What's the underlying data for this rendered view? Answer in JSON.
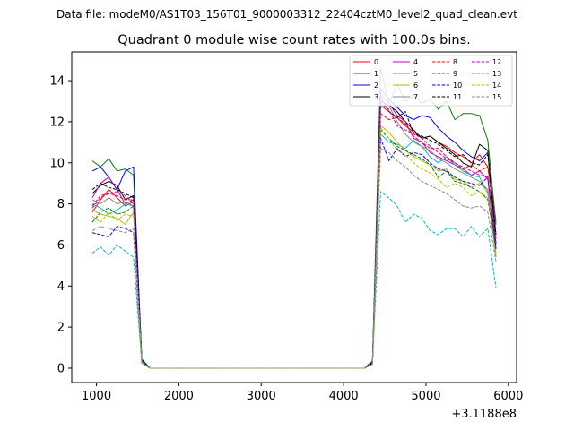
{
  "chart_data": {
    "type": "line",
    "suptitle": "Data file: modeM0/AS1T03_156T01_9000003312_22404cztM0_level2_quad_clean.evt",
    "title": "Quadrant 0 module wise count rates with 100.0s bins.",
    "xlabel": "",
    "ylabel": "",
    "x_offset_label": "+3.1188e8",
    "xlim": [
      700,
      6100
    ],
    "ylim": [
      -0.7,
      15.4
    ],
    "x_ticks": [
      1000,
      2000,
      3000,
      4000,
      5000,
      6000
    ],
    "x_tick_labels": [
      "1000",
      "2000",
      "3000",
      "4000",
      "5000",
      "6000"
    ],
    "y_ticks": [
      0,
      2,
      4,
      6,
      8,
      10,
      12,
      14
    ],
    "y_tick_labels": [
      "0",
      "2",
      "4",
      "6",
      "8",
      "10",
      "12",
      "14"
    ],
    "legend_position": "upper right",
    "x": [
      950,
      1050,
      1150,
      1250,
      1350,
      1450,
      1550,
      1650,
      1750,
      1850,
      1950,
      2050,
      2150,
      2250,
      2350,
      2450,
      2550,
      2650,
      2750,
      2850,
      2950,
      3050,
      3150,
      3250,
      3350,
      3450,
      3550,
      3650,
      3750,
      3850,
      3950,
      4050,
      4150,
      4250,
      4350,
      4450,
      4550,
      4650,
      4750,
      4850,
      4950,
      5050,
      5150,
      5250,
      5350,
      5450,
      5550,
      5650,
      5750,
      5850
    ],
    "series": [
      {
        "name": "0",
        "color": "#ff0000",
        "dash": "solid",
        "pre": [
          7.6,
          8.2,
          8.7,
          8.3,
          7.9,
          8.1,
          0.3
        ],
        "post": [
          0.2,
          12.8,
          12.5,
          12.2,
          11.8,
          11.5,
          11.2,
          11.3,
          11.0,
          10.8,
          10.5,
          10.3,
          10.0,
          10.4,
          9.8,
          7.2
        ]
      },
      {
        "name": "1",
        "color": "#008000",
        "dash": "solid",
        "pre": [
          10.1,
          9.8,
          10.2,
          9.6,
          9.7,
          9.4,
          0.45
        ],
        "post": [
          0.35,
          14.6,
          12.9,
          13.8,
          13.0,
          13.3,
          12.9,
          13.1,
          12.6,
          13.0,
          12.1,
          12.4,
          12.4,
          12.3,
          11.1,
          7.0
        ]
      },
      {
        "name": "2",
        "color": "#0000ff",
        "dash": "solid",
        "pre": [
          9.6,
          9.8,
          9.3,
          8.7,
          9.6,
          9.8,
          0.4
        ],
        "post": [
          0.3,
          13.6,
          13.1,
          12.7,
          12.3,
          12.1,
          12.3,
          12.2,
          11.7,
          11.3,
          11.0,
          10.6,
          10.3,
          10.1,
          10.5,
          6.5
        ]
      },
      {
        "name": "3",
        "color": "#000000",
        "dash": "solid",
        "pre": [
          8.5,
          8.9,
          9.1,
          8.9,
          8.2,
          8.4,
          0.35
        ],
        "post": [
          0.25,
          13.0,
          12.8,
          12.5,
          12.0,
          11.6,
          11.2,
          11.3,
          11.0,
          10.7,
          10.4,
          10.0,
          9.8,
          10.9,
          10.6,
          6.0
        ]
      },
      {
        "name": "4",
        "color": "#c000c0",
        "dash": "solid",
        "pre": [
          8.3,
          9.0,
          9.3,
          8.7,
          8.0,
          8.2,
          0.3
        ],
        "post": [
          0.2,
          13.3,
          12.9,
          12.3,
          12.0,
          11.2,
          11.0,
          10.5,
          10.3,
          10.1,
          9.9,
          9.7,
          9.4,
          9.6,
          9.2,
          5.8
        ]
      },
      {
        "name": "5",
        "color": "#00bbbb",
        "dash": "solid",
        "pre": [
          8.0,
          7.8,
          7.5,
          7.7,
          8.0,
          7.9,
          0.35
        ],
        "post": [
          0.25,
          11.4,
          11.0,
          10.9,
          10.7,
          11.1,
          10.8,
          10.3,
          10.0,
          10.3,
          9.9,
          9.6,
          9.4,
          9.3,
          8.5,
          6.0
        ]
      },
      {
        "name": "6",
        "color": "#bbbb00",
        "dash": "solid",
        "pre": [
          7.7,
          7.5,
          7.4,
          7.3,
          7.0,
          7.6,
          0.3
        ],
        "post": [
          0.2,
          11.8,
          11.5,
          11.0,
          10.6,
          10.3,
          10.1,
          9.9,
          9.6,
          9.7,
          9.2,
          9.1,
          8.8,
          9.0,
          8.6,
          5.6
        ]
      },
      {
        "name": "7",
        "color": "#888888",
        "dash": "solid",
        "pre": [
          8.2,
          8.0,
          8.3,
          8.0,
          8.1,
          7.9,
          0.35
        ],
        "post": [
          0.25,
          12.7,
          12.8,
          12.0,
          11.4,
          11.0,
          10.8,
          10.6,
          10.2,
          10.0,
          9.7,
          9.5,
          9.3,
          9.1,
          8.7,
          5.4
        ]
      },
      {
        "name": "8",
        "color": "#ff0000",
        "dash": "dashed",
        "pre": [
          7.9,
          8.4,
          8.5,
          8.4,
          8.2,
          8.2,
          0.3
        ],
        "post": [
          0.2,
          12.4,
          12.1,
          12.2,
          11.9,
          11.3,
          11.0,
          10.7,
          10.7,
          10.3,
          10.0,
          9.7,
          9.9,
          9.6,
          9.8,
          6.3
        ]
      },
      {
        "name": "9",
        "color": "#008000",
        "dash": "dashed",
        "pre": [
          7.1,
          7.6,
          7.8,
          7.5,
          7.6,
          7.9,
          0.3
        ],
        "post": [
          0.2,
          11.6,
          11.2,
          10.8,
          10.6,
          10.4,
          10.2,
          9.9,
          9.3,
          9.6,
          9.1,
          9.0,
          8.8,
          8.6,
          8.2,
          5.8
        ]
      },
      {
        "name": "10",
        "color": "#0000ff",
        "dash": "dashed",
        "pre": [
          6.6,
          6.5,
          6.4,
          6.9,
          6.8,
          6.6,
          0.25
        ],
        "post": [
          0.2,
          11.2,
          10.1,
          10.7,
          10.3,
          10.5,
          10.4,
          10.0,
          9.7,
          9.6,
          9.3,
          9.1,
          9.0,
          8.9,
          9.3,
          5.8
        ]
      },
      {
        "name": "11",
        "color": "#000000",
        "dash": "dashed",
        "pre": [
          8.7,
          9.0,
          8.8,
          8.7,
          8.5,
          8.3,
          0.35
        ],
        "post": [
          0.25,
          13.2,
          12.5,
          12.2,
          12.5,
          11.4,
          11.3,
          11.1,
          10.9,
          10.6,
          10.3,
          10.4,
          10.0,
          9.9,
          10.4,
          6.5
        ]
      },
      {
        "name": "12",
        "color": "#c000c0",
        "dash": "dashed",
        "pre": [
          7.8,
          8.3,
          8.5,
          8.6,
          8.4,
          8.0,
          0.3
        ],
        "post": [
          0.2,
          12.9,
          12.6,
          11.8,
          11.6,
          11.4,
          11.2,
          10.8,
          10.5,
          10.2,
          10.0,
          9.8,
          9.6,
          9.4,
          9.3,
          6.1
        ]
      },
      {
        "name": "13",
        "color": "#00bbbb",
        "dash": "dashed",
        "pre": [
          5.6,
          5.9,
          5.5,
          6.0,
          5.7,
          5.4,
          0.25
        ],
        "post": [
          0.2,
          8.6,
          8.3,
          7.9,
          7.1,
          7.5,
          7.3,
          6.7,
          6.5,
          6.8,
          6.8,
          6.4,
          6.9,
          6.4,
          6.8,
          3.9
        ]
      },
      {
        "name": "14",
        "color": "#bbbb00",
        "dash": "dashed",
        "pre": [
          7.4,
          7.1,
          7.6,
          7.2,
          7.5,
          7.4,
          0.3
        ],
        "post": [
          0.2,
          11.7,
          11.2,
          10.6,
          10.4,
          10.0,
          9.7,
          9.5,
          9.2,
          8.8,
          9.0,
          8.8,
          8.4,
          8.6,
          8.3,
          5.5
        ]
      },
      {
        "name": "15",
        "color": "#888888",
        "dash": "dashed",
        "pre": [
          6.7,
          6.9,
          6.8,
          6.7,
          6.6,
          6.8,
          0.25
        ],
        "post": [
          0.2,
          10.7,
          10.5,
          10.1,
          9.8,
          9.4,
          9.1,
          8.9,
          8.7,
          8.5,
          8.2,
          7.9,
          7.8,
          7.9,
          7.6,
          5.2
        ]
      }
    ]
  }
}
